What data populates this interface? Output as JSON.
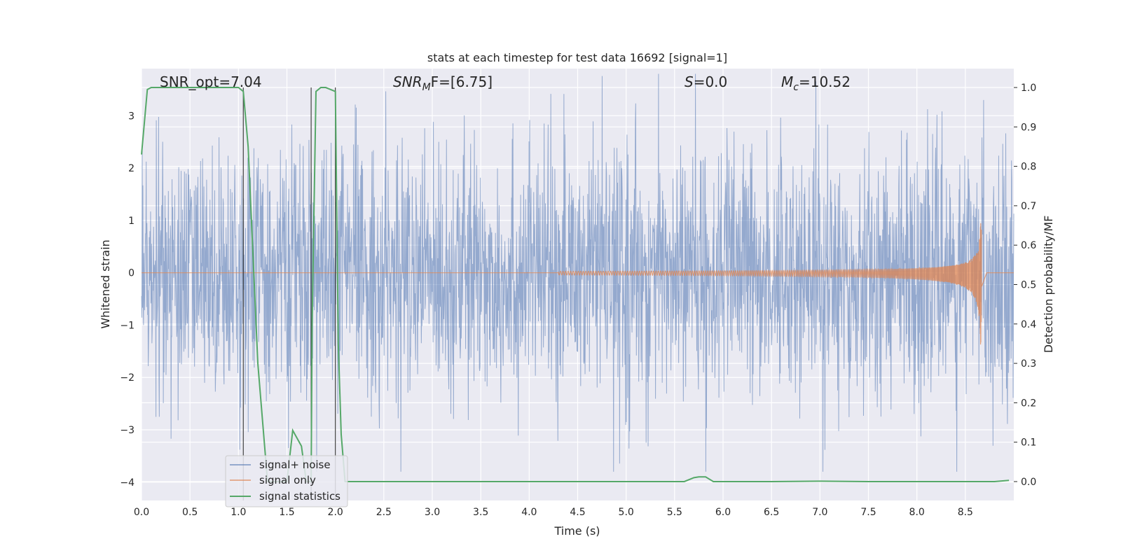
{
  "chart_data": {
    "type": "line",
    "title": "stats at each timestep for test data 16692 [signal=1]",
    "xlabel": "Time (s)",
    "ylabel": "Whitened strain",
    "ylabel_right": "Detection probability/MF",
    "xlim": [
      0.0,
      9.0
    ],
    "ylim": [
      -4.35,
      3.9
    ],
    "ylim_right": [
      -0.048,
      1.048
    ],
    "x_ticks": [
      "0.0",
      "0.5",
      "1.0",
      "1.5",
      "2.0",
      "2.5",
      "3.0",
      "3.5",
      "4.0",
      "4.5",
      "5.0",
      "5.5",
      "6.0",
      "6.5",
      "7.0",
      "7.5",
      "8.0",
      "8.5"
    ],
    "y_ticks": [
      "3",
      "2",
      "1",
      "0",
      "−1",
      "−2",
      "−3",
      "−4"
    ],
    "y_ticks_right": [
      "1.0",
      "0.9",
      "0.8",
      "0.7",
      "0.6",
      "0.5",
      "0.4",
      "0.3",
      "0.2",
      "0.1",
      "0.0"
    ],
    "grid": true,
    "legend_placement": "lower-left",
    "annotations": {
      "snr_opt": "SNR_opt=7.04",
      "snr_mf_base": "SNR",
      "snr_mf_sub": "M",
      "snr_mf_rest": "F=[6.75]",
      "s_var": "S",
      "s_val": "=0.0",
      "mc_var": "M",
      "mc_sub": "c",
      "mc_val": "=10.52"
    },
    "vlines_x": [
      1.05,
      1.75,
      2.0
    ],
    "series": [
      {
        "name": "signal+ noise",
        "color": "#4c72b0",
        "alpha": 0.5,
        "description_envelope": {
          "typical_abs": 2.3,
          "peak_abs": 3.8
        }
      },
      {
        "name": "signal only",
        "color": "#dd8452",
        "chirp": {
          "start_x": 4.3,
          "merger_x": 8.67,
          "peak_pos": 0.95,
          "peak_neg": -1.4
        }
      },
      {
        "name": "signal statistics",
        "color": "#55a868",
        "axis": "right",
        "x": [
          0.0,
          0.06,
          0.1,
          0.2,
          0.5,
          0.9,
          1.0,
          1.05,
          1.1,
          1.2,
          1.3,
          1.5,
          1.56,
          1.65,
          1.7,
          1.75,
          1.76,
          1.8,
          1.85,
          1.9,
          2.0,
          2.03,
          2.06,
          2.1,
          2.2,
          3.0,
          4.0,
          5.0,
          5.6,
          5.7,
          5.75,
          5.82,
          5.9,
          6.5,
          7.0,
          7.5,
          8.0,
          8.5,
          8.8,
          8.95
        ],
        "y": [
          0.83,
          0.995,
          1.0,
          1.0,
          1.0,
          1.0,
          1.0,
          0.99,
          0.85,
          0.3,
          0.0,
          0.0,
          0.13,
          0.09,
          0.0,
          0.0,
          0.4,
          0.99,
          1.0,
          1.0,
          0.99,
          0.35,
          0.12,
          0.0,
          0.0,
          0.0,
          0.0,
          0.0,
          0.0,
          0.01,
          0.012,
          0.012,
          0.0,
          0.0,
          0.001,
          0.0,
          0.0,
          0.0,
          0.0,
          0.003
        ]
      }
    ]
  }
}
